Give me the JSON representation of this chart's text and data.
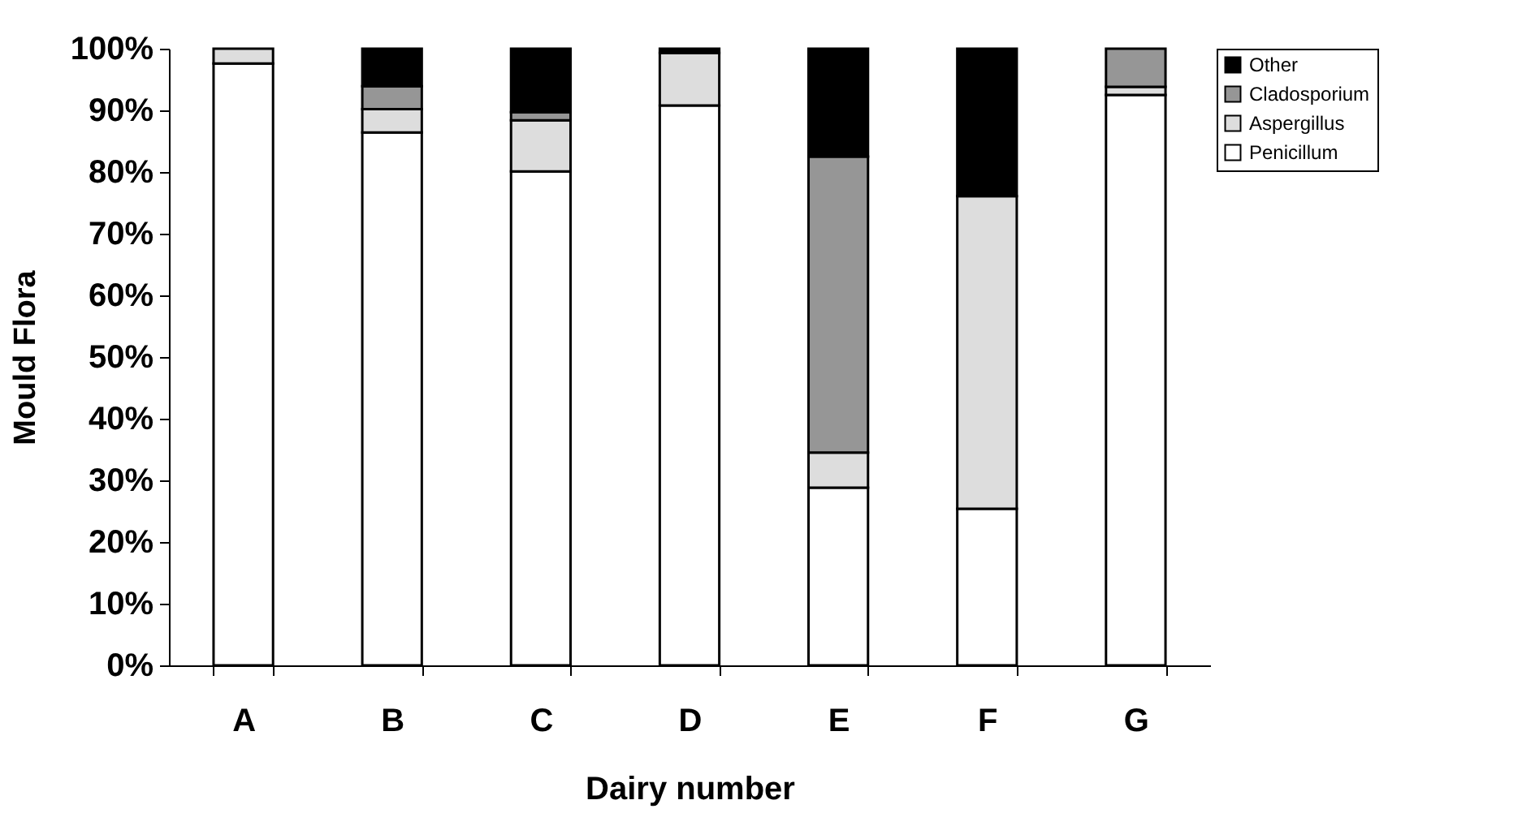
{
  "chart_data": {
    "type": "bar",
    "stacked": true,
    "xlabel": "Dairy number",
    "ylabel": "Mould Flora",
    "categories": [
      "A",
      "B",
      "C",
      "D",
      "E",
      "F",
      "G"
    ],
    "series": [
      {
        "name": "Penicillum",
        "color": "#ffffff",
        "values": [
          97.6,
          86.4,
          80.1,
          90.8,
          28.8,
          25.4,
          92.5
        ]
      },
      {
        "name": "Aspergillus",
        "color": "#dddddd",
        "values": [
          2.4,
          3.8,
          8.3,
          8.5,
          5.7,
          50.7,
          1.3
        ]
      },
      {
        "name": "Cladosporium",
        "color": "#969696",
        "values": [
          null,
          3.7,
          1.3,
          null,
          48.0,
          null,
          6.2
        ]
      },
      {
        "name": "Other",
        "color": "#000000",
        "values": [
          null,
          6.1,
          10.3,
          0.7,
          17.5,
          23.9,
          null
        ]
      }
    ],
    "ylim": [
      0,
      100
    ],
    "yticks": [
      {
        "value": 0,
        "label": "0%"
      },
      {
        "value": 10,
        "label": "10%"
      },
      {
        "value": 20,
        "label": "20%"
      },
      {
        "value": 30,
        "label": "30%"
      },
      {
        "value": 40,
        "label": "40%"
      },
      {
        "value": 50,
        "label": "50%"
      },
      {
        "value": 60,
        "label": "60%"
      },
      {
        "value": 70,
        "label": "70%"
      },
      {
        "value": 80,
        "label": "80%"
      },
      {
        "value": 90,
        "label": "90%"
      },
      {
        "value": 100,
        "label": "100%"
      }
    ],
    "grid": false,
    "legend": "right"
  }
}
